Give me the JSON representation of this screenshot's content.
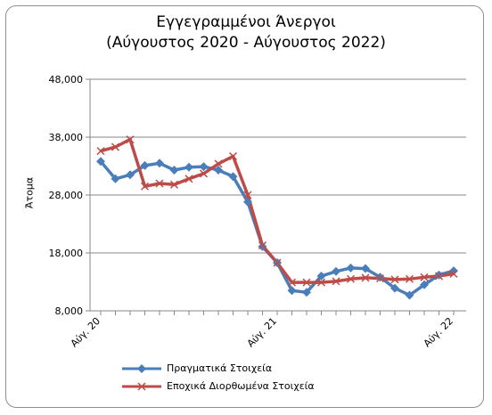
{
  "chart_data": {
    "type": "line",
    "title": "Εγγεγραμμένοι Άνεργοι",
    "subtitle": "(Αύγουστος 2020 - Αύγουστος 2022)",
    "ylabel": "Άτομα",
    "xlabel": "",
    "ylim": [
      8000,
      48000
    ],
    "yticks": [
      8000,
      18000,
      28000,
      38000,
      48000
    ],
    "ytick_labels": [
      "8,000",
      "18,000",
      "28,000",
      "38,000",
      "48,000"
    ],
    "x_tick_labels": [
      {
        "index": 0,
        "label": "Αύγ. 20"
      },
      {
        "index": 12,
        "label": "Αύγ. 21"
      },
      {
        "index": 24,
        "label": "Αύγ. 22"
      }
    ],
    "n_points": 25,
    "grid": "horizontal",
    "legend_position": "bottom",
    "series": [
      {
        "name": "Πραγματικά Στοιχεία",
        "color": "#4a7ebb",
        "marker": "diamond",
        "values": [
          33800,
          30800,
          31500,
          33100,
          33500,
          32300,
          32800,
          32900,
          32300,
          31200,
          26800,
          19100,
          16300,
          11500,
          11200,
          14000,
          14800,
          15400,
          15300,
          13800,
          11900,
          10700,
          12500,
          14200,
          14900
        ]
      },
      {
        "name": "Εποχικά Διορθωμένα Στοιχεία",
        "color": "#be4b48",
        "marker": "star",
        "values": [
          35600,
          36300,
          37600,
          29500,
          30000,
          29800,
          30800,
          31700,
          33400,
          34700,
          28000,
          19300,
          16300,
          12900,
          12900,
          12900,
          13100,
          13500,
          13700,
          13600,
          13400,
          13500,
          13800,
          14000,
          14400
        ]
      }
    ]
  }
}
